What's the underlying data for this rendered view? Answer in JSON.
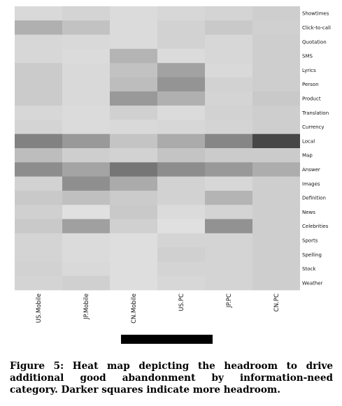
{
  "chart_data": {
    "type": "heatmap",
    "columns": [
      "US.Mobile",
      "JP.Mobile",
      "CN.Mobile",
      "US.PC",
      "JP.PC",
      "CN.PC"
    ],
    "rows": [
      "Showtimes",
      "Click-to-call",
      "Quotation",
      "SMS",
      "Lyrics",
      "Person",
      "Product",
      "Translation",
      "Currency",
      "Local",
      "Map",
      "Answer",
      "Images",
      "Definition",
      "News",
      "Celebrities",
      "Sports",
      "Spelling",
      "Stock",
      "Weather"
    ],
    "values": [
      [
        0.1,
        0.12,
        0.09,
        0.11,
        0.12,
        0.15
      ],
      [
        0.28,
        0.2,
        0.09,
        0.13,
        0.17,
        0.14
      ],
      [
        0.11,
        0.1,
        0.09,
        0.13,
        0.11,
        0.15
      ],
      [
        0.11,
        0.09,
        0.26,
        0.09,
        0.11,
        0.15
      ],
      [
        0.16,
        0.1,
        0.2,
        0.34,
        0.1,
        0.15
      ],
      [
        0.16,
        0.1,
        0.22,
        0.4,
        0.13,
        0.15
      ],
      [
        0.16,
        0.1,
        0.38,
        0.28,
        0.12,
        0.17
      ],
      [
        0.11,
        0.09,
        0.14,
        0.09,
        0.13,
        0.15
      ],
      [
        0.12,
        0.09,
        0.1,
        0.11,
        0.12,
        0.15
      ],
      [
        0.48,
        0.38,
        0.19,
        0.3,
        0.46,
        0.74
      ],
      [
        0.22,
        0.15,
        0.13,
        0.19,
        0.16,
        0.16
      ],
      [
        0.43,
        0.33,
        0.53,
        0.43,
        0.38,
        0.29
      ],
      [
        0.13,
        0.42,
        0.3,
        0.13,
        0.11,
        0.15
      ],
      [
        0.17,
        0.21,
        0.16,
        0.13,
        0.26,
        0.15
      ],
      [
        0.14,
        0.07,
        0.17,
        0.09,
        0.12,
        0.15
      ],
      [
        0.17,
        0.35,
        0.14,
        0.07,
        0.41,
        0.15
      ],
      [
        0.12,
        0.09,
        0.08,
        0.12,
        0.12,
        0.15
      ],
      [
        0.12,
        0.09,
        0.08,
        0.14,
        0.12,
        0.15
      ],
      [
        0.13,
        0.1,
        0.08,
        0.12,
        0.12,
        0.15
      ],
      [
        0.12,
        0.14,
        0.08,
        0.11,
        0.12,
        0.15
      ]
    ],
    "scale": "darker = more headroom",
    "legend": "none"
  },
  "caption": "Figure 5: Heat map depicting the headroom to drive additional good abandonment by information-need category. Darker squares indicate more headroom."
}
